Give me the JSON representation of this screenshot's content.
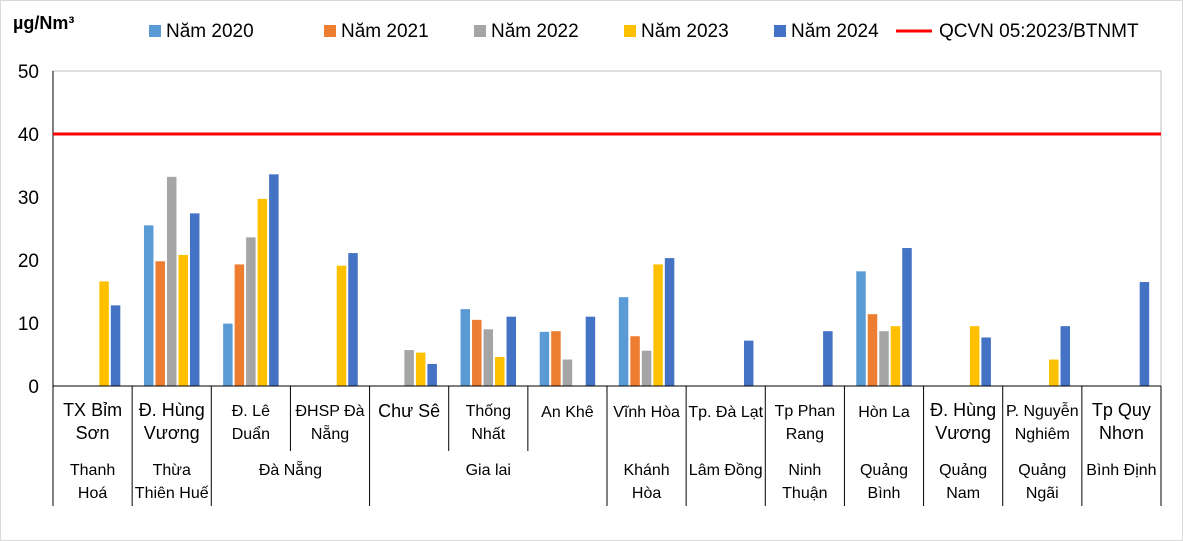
{
  "chart_data": {
    "type": "bar",
    "unit_label": "µg/Nm³",
    "ylim": [
      0,
      50
    ],
    "yticks": [
      0,
      10,
      20,
      30,
      40,
      50
    ],
    "grid": false,
    "legend_position": "top",
    "categories": [
      {
        "label": [
          "TX Bỉm",
          "Sơn"
        ],
        "bold": true
      },
      {
        "label": [
          "Đ. Hùng",
          "Vương"
        ],
        "bold": true
      },
      {
        "label": [
          "Đ. Lê",
          "Duẩn"
        ],
        "bold": false
      },
      {
        "label": [
          "ĐHSP Đà",
          "Nẵng"
        ],
        "bold": false
      },
      {
        "label": [
          "Chư Sê"
        ],
        "bold": true
      },
      {
        "label": [
          "Thống",
          "Nhất"
        ],
        "bold": false
      },
      {
        "label": [
          "An Khê"
        ],
        "bold": false
      },
      {
        "label": [
          "Vĩnh Hòa"
        ],
        "bold": false
      },
      {
        "label": [
          "Tp. Đà Lạt"
        ],
        "bold": false
      },
      {
        "label": [
          "Tp Phan",
          "Rang"
        ],
        "bold": false
      },
      {
        "label": [
          "Hòn La"
        ],
        "bold": false
      },
      {
        "label": [
          "Đ. Hùng",
          "Vương"
        ],
        "bold": true
      },
      {
        "label": [
          "P. Nguyễn",
          "Nghiêm"
        ],
        "bold": false
      },
      {
        "label": [
          "Tp Quy",
          "Nhơn"
        ],
        "bold": true
      }
    ],
    "groups": [
      {
        "label": [
          "Thanh",
          "Hoá"
        ],
        "start": 0,
        "end": 0
      },
      {
        "label": [
          "Thừa",
          "Thiên Huế"
        ],
        "start": 1,
        "end": 1
      },
      {
        "label": [
          "Đà Nẵng"
        ],
        "start": 2,
        "end": 3
      },
      {
        "label": [
          "Gia lai"
        ],
        "start": 4,
        "end": 6
      },
      {
        "label": [
          "Khánh",
          "Hòa"
        ],
        "start": 7,
        "end": 7
      },
      {
        "label": [
          "Lâm Đồng"
        ],
        "start": 8,
        "end": 8
      },
      {
        "label": [
          "Ninh",
          "Thuận"
        ],
        "start": 9,
        "end": 9
      },
      {
        "label": [
          "Quảng",
          "Bình"
        ],
        "start": 10,
        "end": 10
      },
      {
        "label": [
          "Quảng",
          "Nam"
        ],
        "start": 11,
        "end": 11
      },
      {
        "label": [
          "Quảng",
          "Ngãi"
        ],
        "start": 12,
        "end": 12
      },
      {
        "label": [
          "Bình Định"
        ],
        "start": 13,
        "end": 13
      }
    ],
    "series": [
      {
        "name": "Năm 2020",
        "color": "#5B9BD5",
        "values": [
          null,
          25.5,
          9.9,
          null,
          null,
          12.2,
          8.6,
          14.1,
          null,
          null,
          18.2,
          null,
          null,
          null
        ]
      },
      {
        "name": "Năm 2021",
        "color": "#ED7D31",
        "values": [
          null,
          19.8,
          19.3,
          null,
          null,
          10.5,
          8.7,
          7.9,
          null,
          null,
          11.4,
          null,
          null,
          null
        ]
      },
      {
        "name": "Năm 2022",
        "color": "#A5A5A5",
        "values": [
          null,
          33.2,
          23.6,
          null,
          5.7,
          9.0,
          4.2,
          5.6,
          null,
          null,
          8.7,
          null,
          null,
          null
        ]
      },
      {
        "name": "Năm 2023",
        "color": "#FFC000",
        "values": [
          16.6,
          20.8,
          29.7,
          19.1,
          5.3,
          4.6,
          null,
          19.3,
          null,
          null,
          9.5,
          9.5,
          4.2,
          null
        ]
      },
      {
        "name": "Năm 2024",
        "color": "#4472C4",
        "values": [
          12.8,
          27.4,
          33.6,
          21.1,
          3.5,
          11.0,
          11.0,
          20.3,
          7.2,
          8.7,
          21.9,
          7.7,
          9.5,
          16.5
        ]
      }
    ],
    "reference_line": {
      "name": "QCVN 05:2023/BTNMT",
      "value": 40,
      "color": "#FF0000"
    }
  }
}
